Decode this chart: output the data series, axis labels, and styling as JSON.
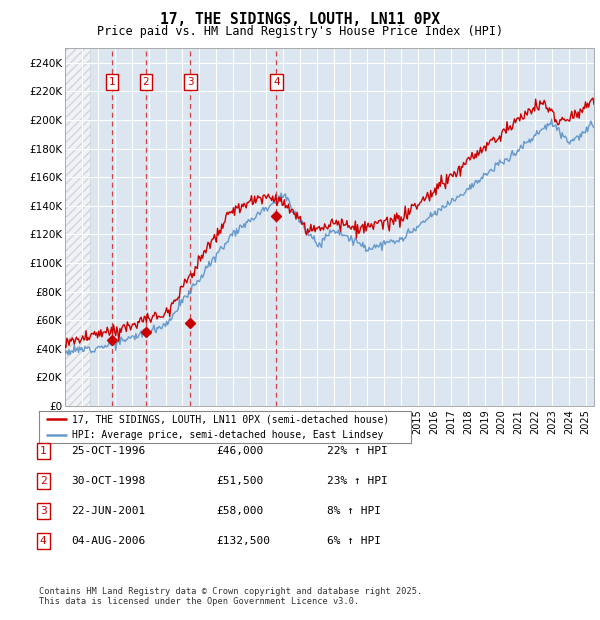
{
  "title": "17, THE SIDINGS, LOUTH, LN11 0PX",
  "subtitle": "Price paid vs. HM Land Registry's House Price Index (HPI)",
  "background_color": "#ffffff",
  "plot_bg_color": "#dce6f1",
  "hatch_region_end": 1995.5,
  "xlim_start": 1994.0,
  "xlim_end": 2025.5,
  "ylim": [
    0,
    250000
  ],
  "yticks": [
    0,
    20000,
    40000,
    60000,
    80000,
    100000,
    120000,
    140000,
    160000,
    180000,
    200000,
    220000,
    240000
  ],
  "ytick_labels": [
    "£0",
    "£20K",
    "£40K",
    "£60K",
    "£80K",
    "£100K",
    "£120K",
    "£140K",
    "£160K",
    "£180K",
    "£200K",
    "£220K",
    "£240K"
  ],
  "red_line_color": "#cc0000",
  "blue_line_color": "#6699cc",
  "sale_dates": [
    1996.82,
    1998.83,
    2001.47,
    2006.59
  ],
  "sale_prices": [
    46000,
    51500,
    58000,
    132500
  ],
  "sale_labels": [
    "1",
    "2",
    "3",
    "4"
  ],
  "legend_line1": "17, THE SIDINGS, LOUTH, LN11 0PX (semi-detached house)",
  "legend_line2": "HPI: Average price, semi-detached house, East Lindsey",
  "footnote": "Contains HM Land Registry data © Crown copyright and database right 2025.\nThis data is licensed under the Open Government Licence v3.0.",
  "table_rows": [
    [
      "1",
      "25-OCT-1996",
      "£46,000",
      "22% ↑ HPI"
    ],
    [
      "2",
      "30-OCT-1998",
      "£51,500",
      "23% ↑ HPI"
    ],
    [
      "3",
      "22-JUN-2001",
      "£58,000",
      "8% ↑ HPI"
    ],
    [
      "4",
      "04-AUG-2006",
      "£132,500",
      "6% ↑ HPI"
    ]
  ]
}
